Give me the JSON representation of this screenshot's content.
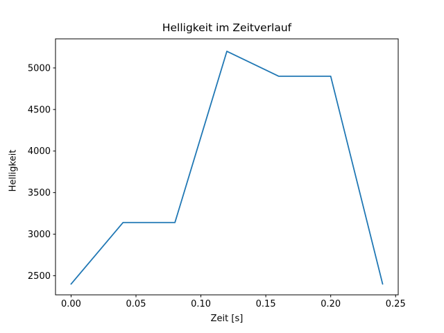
{
  "chart_data": {
    "type": "line",
    "title": "Helligkeit im Zeitverlauf",
    "xlabel": "Zeit [s]",
    "ylabel": "Helligkeit",
    "x": [
      0.0,
      0.04,
      0.08,
      0.12,
      0.16,
      0.2,
      0.24
    ],
    "y": [
      2400,
      3140,
      3140,
      5200,
      4900,
      4900,
      2400
    ],
    "series": [
      {
        "name": "Helligkeit",
        "x": [
          0.0,
          0.04,
          0.08,
          0.12,
          0.16,
          0.2,
          0.24
        ],
        "values": [
          2400,
          3140,
          3140,
          5200,
          4900,
          4900,
          2400
        ]
      }
    ],
    "x_tick_labels": [
      "0.00",
      "0.05",
      "0.10",
      "0.15",
      "0.20",
      "0.25"
    ],
    "x_tick_values": [
      0.0,
      0.05,
      0.1,
      0.15,
      0.2,
      0.25
    ],
    "y_tick_labels": [
      "2500",
      "3000",
      "3500",
      "4000",
      "4500",
      "5000"
    ],
    "y_tick_values": [
      2500,
      3000,
      3500,
      4000,
      4500,
      5000
    ],
    "xlim": [
      -0.012,
      0.252
    ],
    "ylim": [
      2270,
      5350
    ],
    "grid": false,
    "legend_position": "none",
    "colors": {
      "line": "#1f77b4",
      "spine": "#000000",
      "background": "#ffffff",
      "text": "#000000"
    }
  }
}
